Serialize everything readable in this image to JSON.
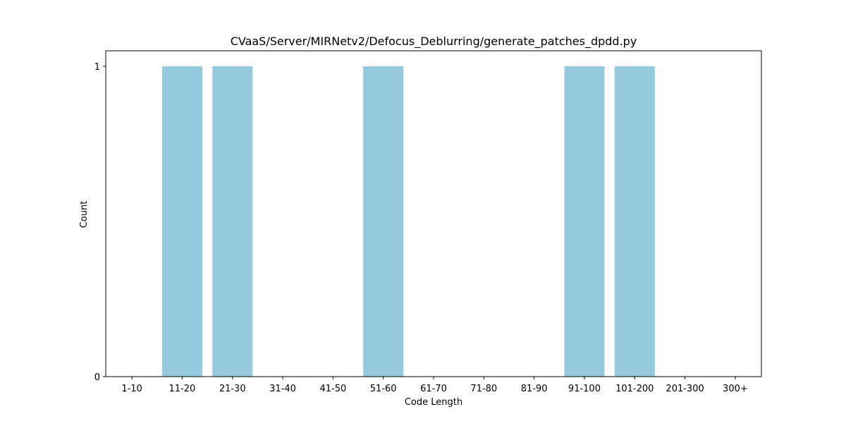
{
  "chart_data": {
    "type": "bar",
    "title": "CVaaS/Server/MIRNetv2/Defocus_Deblurring/generate_patches_dpdd.py",
    "xlabel": "Code Length",
    "ylabel": "Count",
    "categories": [
      "1-10",
      "11-20",
      "21-30",
      "31-40",
      "41-50",
      "51-60",
      "61-70",
      "71-80",
      "81-90",
      "91-100",
      "101-200",
      "201-300",
      "300+"
    ],
    "values": [
      0,
      1,
      1,
      0,
      0,
      1,
      0,
      0,
      0,
      1,
      1,
      0,
      0
    ],
    "ylim": [
      0,
      1.05
    ],
    "yticks": [
      "0",
      "1"
    ],
    "bar_color": "#96c9dd",
    "grid": false,
    "legend": "none"
  }
}
